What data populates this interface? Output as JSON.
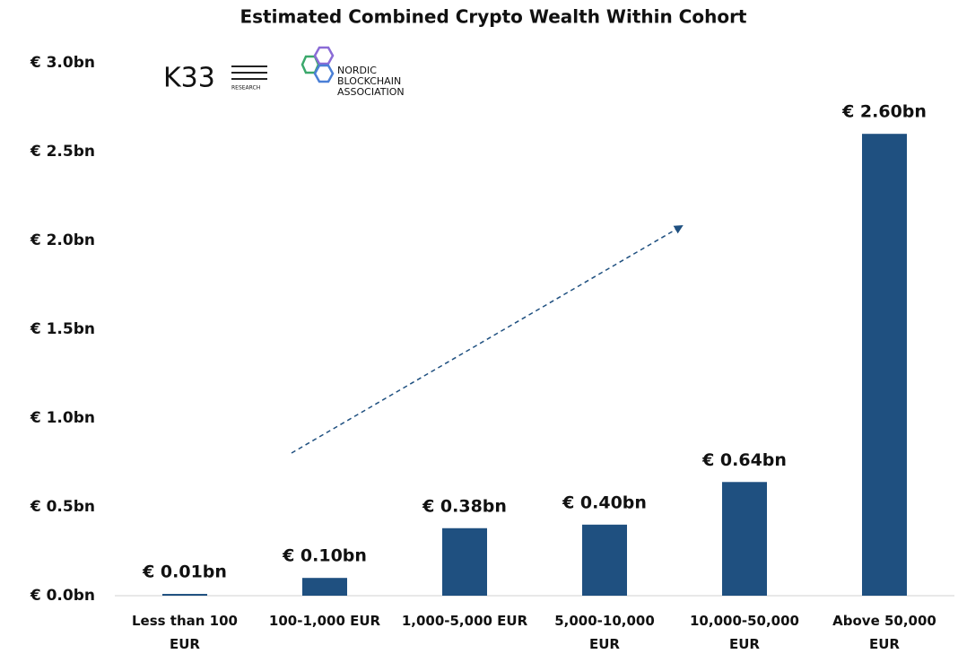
{
  "chart_data": {
    "type": "bar",
    "title": "Estimated Combined Crypto Wealth Within Cohort",
    "categories": [
      "Less than 100 EUR",
      "100-1,000 EUR",
      "1,000-5,000 EUR",
      "5,000-10,000 EUR",
      "10,000-50,000 EUR",
      "Above 50,000 EUR"
    ],
    "values": [
      0.01,
      0.1,
      0.38,
      0.4,
      0.64,
      2.6
    ],
    "value_labels": [
      "€ 0.01bn",
      "€ 0.10bn",
      "€ 0.38bn",
      "€ 0.40bn",
      "€ 0.64bn",
      "€ 2.60bn"
    ],
    "color": "#1f5080",
    "ylim": [
      0,
      3.0
    ],
    "yticks": [
      {
        "value": 0,
        "label": "€ 0.0bn"
      },
      {
        "value": 0.5,
        "label": "€ 0.5bn"
      },
      {
        "value": 1.0,
        "label": "€ 1.0bn"
      },
      {
        "value": 1.5,
        "label": "€ 1.5bn"
      },
      {
        "value": 2.0,
        "label": "€ 2.0bn"
      },
      {
        "value": 2.5,
        "label": "€ 2.5bn"
      },
      {
        "value": 3.0,
        "label": "€ 3.0bn"
      }
    ],
    "grid": false,
    "logos": {
      "k33": "K33",
      "k33_sub": "RESEARCH",
      "nba": [
        "NORDIC",
        "BLOCKCHAIN",
        "ASSOCIATION"
      ]
    }
  }
}
